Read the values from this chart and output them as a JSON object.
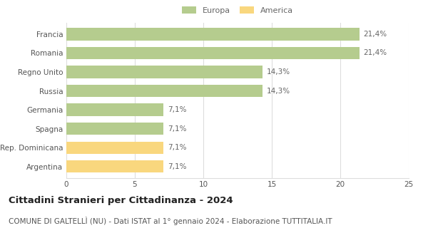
{
  "categories": [
    "Francia",
    "Romania",
    "Regno Unito",
    "Russia",
    "Germania",
    "Spagna",
    "Rep. Dominicana",
    "Argentina"
  ],
  "values": [
    21.4,
    21.4,
    14.3,
    14.3,
    7.1,
    7.1,
    7.1,
    7.1
  ],
  "labels": [
    "21,4%",
    "21,4%",
    "14,3%",
    "14,3%",
    "7,1%",
    "7,1%",
    "7,1%",
    "7,1%"
  ],
  "colors": [
    "#b5cc8e",
    "#b5cc8e",
    "#b5cc8e",
    "#b5cc8e",
    "#b5cc8e",
    "#b5cc8e",
    "#f9d77e",
    "#f9d77e"
  ],
  "legend": [
    {
      "label": "Europa",
      "color": "#b5cc8e"
    },
    {
      "label": "America",
      "color": "#f9d77e"
    }
  ],
  "xlim": [
    0,
    25
  ],
  "xticks": [
    0,
    5,
    10,
    15,
    20,
    25
  ],
  "title": "Cittadini Stranieri per Cittadinanza - 2024",
  "subtitle": "COMUNE DI GALTELLÌ (NU) - Dati ISTAT al 1° gennaio 2024 - Elaborazione TUTTITALIA.IT",
  "title_fontsize": 9.5,
  "subtitle_fontsize": 7.5,
  "label_fontsize": 7.5,
  "tick_fontsize": 7.5,
  "background_color": "#ffffff",
  "grid_color": "#dddddd",
  "bar_height": 0.65
}
